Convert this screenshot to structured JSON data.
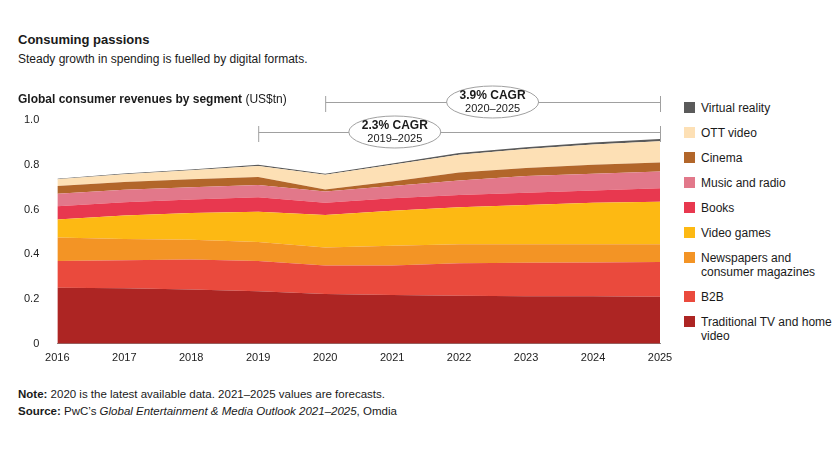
{
  "chart_data": {
    "type": "area",
    "stacked": true,
    "grid": false,
    "legend": "right",
    "title": "Consuming passions",
    "subtitle": "Steady growth in spending is fuelled by digital formats.",
    "y_label": "Global consumer revenues by segment",
    "y_unit": "(US$tn)",
    "categories": [
      "2016",
      "2017",
      "2018",
      "2019",
      "2020",
      "2021",
      "2022",
      "2023",
      "2024",
      "2025"
    ],
    "ylim": [
      0,
      1
    ],
    "yticks": [
      0,
      0.2,
      0.4,
      0.6,
      0.8,
      {
        "value": 1,
        "label": "1.0"
      }
    ],
    "series": [
      {
        "name": "Traditional TV and home video",
        "color": "#ad2523",
        "values": [
          0.25,
          0.248,
          0.243,
          0.235,
          0.222,
          0.218,
          0.215,
          0.213,
          0.212,
          0.21
        ]
      },
      {
        "name": "B2B",
        "color": "#ea4a3d",
        "values": [
          0.12,
          0.125,
          0.134,
          0.135,
          0.128,
          0.132,
          0.145,
          0.149,
          0.151,
          0.155
        ]
      },
      {
        "name": "Newspapers and consumer magazines",
        "color": "#f39425",
        "values": [
          0.105,
          0.095,
          0.088,
          0.085,
          0.08,
          0.088,
          0.085,
          0.083,
          0.082,
          0.08
        ]
      },
      {
        "name": "Video games",
        "color": "#fdb913",
        "values": [
          0.08,
          0.105,
          0.12,
          0.135,
          0.145,
          0.157,
          0.165,
          0.175,
          0.185,
          0.19
        ]
      },
      {
        "name": "Books",
        "color": "#e8384f",
        "values": [
          0.06,
          0.06,
          0.06,
          0.065,
          0.055,
          0.055,
          0.055,
          0.055,
          0.055,
          0.06
        ]
      },
      {
        "name": "Music and radio",
        "color": "#e2788a",
        "values": [
          0.055,
          0.055,
          0.055,
          0.055,
          0.05,
          0.055,
          0.065,
          0.075,
          0.075,
          0.075
        ]
      },
      {
        "name": "Cinema",
        "color": "#b2662a",
        "values": [
          0.035,
          0.035,
          0.035,
          0.035,
          0.01,
          0.02,
          0.035,
          0.035,
          0.04,
          0.04
        ]
      },
      {
        "name": "OTT video",
        "color": "#fde0b5",
        "values": [
          0.03,
          0.035,
          0.04,
          0.05,
          0.065,
          0.075,
          0.08,
          0.085,
          0.09,
          0.095
        ]
      },
      {
        "name": "Virtual reality",
        "color": "#5a5a5a",
        "values": [
          0.002,
          0.003,
          0.004,
          0.005,
          0.005,
          0.006,
          0.007,
          0.008,
          0.009,
          0.01
        ]
      }
    ],
    "annotations": [
      {
        "text": "3.9% CAGR",
        "period": "2020–2025",
        "from": "2020",
        "to": "2025"
      },
      {
        "text": "2.3% CAGR",
        "period": "2019–2025",
        "from": "2019",
        "to": "2025"
      }
    ],
    "note": {
      "label": "Note:",
      "text": "2020 is the latest available data. 2021–2025 values are forecasts."
    },
    "source": {
      "label": "Source:",
      "parts": [
        "PwC’s ",
        "Global Entertainment & Media Outlook 2021–2025",
        ", Omdia"
      ]
    }
  }
}
